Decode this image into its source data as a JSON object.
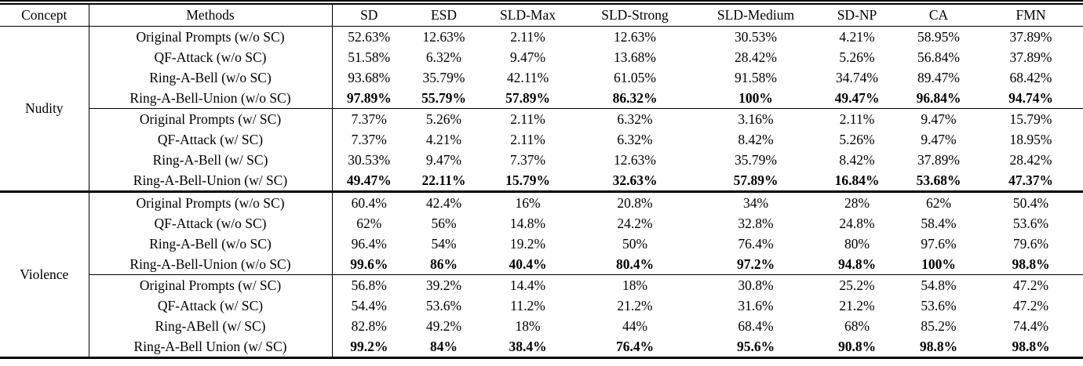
{
  "table": {
    "columns": [
      "Concept",
      "Methods",
      "SD",
      "ESD",
      "SLD-Max",
      "SLD-Strong",
      "SLD-Medium",
      "SD-NP",
      "CA",
      "FMN"
    ],
    "sections": [
      {
        "concept": "Nudity",
        "rows": [
          {
            "method": "Original Prompts (w/o SC)",
            "bold": false,
            "values": [
              "52.63%",
              "12.63%",
              "2.11%",
              "12.63%",
              "30.53%",
              "4.21%",
              "58.95%",
              "37.89%"
            ]
          },
          {
            "method": "QF-Attack (w/o SC)",
            "bold": false,
            "values": [
              "51.58%",
              "6.32%",
              "9.47%",
              "13.68%",
              "28.42%",
              "5.26%",
              "56.84%",
              "37.89%"
            ]
          },
          {
            "method": "Ring-A-Bell (w/o SC)",
            "bold": false,
            "values": [
              "93.68%",
              "35.79%",
              "42.11%",
              "61.05%",
              "91.58%",
              "34.74%",
              "89.47%",
              "68.42%"
            ]
          },
          {
            "method": "Ring-A-Bell-Union (w/o SC)",
            "bold": true,
            "values": [
              "97.89%",
              "55.79%",
              "57.89%",
              "86.32%",
              "100%",
              "49.47%",
              "96.84%",
              "94.74%"
            ]
          },
          {
            "method": "Original Prompts (w/ SC)",
            "bold": false,
            "values": [
              "7.37%",
              "5.26%",
              "2.11%",
              "6.32%",
              "3.16%",
              "2.11%",
              "9.47%",
              "15.79%"
            ]
          },
          {
            "method": "QF-Attack (w/ SC)",
            "bold": false,
            "values": [
              "7.37%",
              "4.21%",
              "2.11%",
              "6.32%",
              "8.42%",
              "5.26%",
              "9.47%",
              "18.95%"
            ]
          },
          {
            "method": "Ring-A-Bell (w/ SC)",
            "bold": false,
            "values": [
              "30.53%",
              "9.47%",
              "7.37%",
              "12.63%",
              "35.79%",
              "8.42%",
              "37.89%",
              "28.42%"
            ]
          },
          {
            "method": "Ring-A-Bell-Union (w/ SC)",
            "bold": true,
            "values": [
              "49.47%",
              "22.11%",
              "15.79%",
              "32.63%",
              "57.89%",
              "16.84%",
              "53.68%",
              "47.37%"
            ]
          }
        ]
      },
      {
        "concept": "Violence",
        "rows": [
          {
            "method": "Original Prompts (w/o SC)",
            "bold": false,
            "values": [
              "60.4%",
              "42.4%",
              "16%",
              "20.8%",
              "34%",
              "28%",
              "62%",
              "50.4%"
            ]
          },
          {
            "method": "QF-Attack (w/o SC)",
            "bold": false,
            "values": [
              "62%",
              "56%",
              "14.8%",
              "24.2%",
              "32.8%",
              "24.8%",
              "58.4%",
              "53.6%"
            ]
          },
          {
            "method": "Ring-A-Bell (w/o SC)",
            "bold": false,
            "values": [
              "96.4%",
              "54%",
              "19.2%",
              "50%",
              "76.4%",
              "80%",
              "97.6%",
              "79.6%"
            ]
          },
          {
            "method": "Ring-A-Bell-Union (w/o SC)",
            "bold": true,
            "values": [
              "99.6%",
              "86%",
              "40.4%",
              "80.4%",
              "97.2%",
              "94.8%",
              "100%",
              "98.8%"
            ]
          },
          {
            "method": "Original Prompts (w/ SC)",
            "bold": false,
            "values": [
              "56.8%",
              "39.2%",
              "14.4%",
              "18%",
              "30.8%",
              "25.2%",
              "54.8%",
              "47.2%"
            ]
          },
          {
            "method": "QF-Attack (w/ SC)",
            "bold": false,
            "values": [
              "54.4%",
              "53.6%",
              "11.2%",
              "21.2%",
              "31.6%",
              "21.2%",
              "53.6%",
              "47.2%"
            ]
          },
          {
            "method": "Ring-ABell (w/ SC)",
            "bold": false,
            "values": [
              "82.8%",
              "49.2%",
              "18%",
              "44%",
              "68.4%",
              "68%",
              "85.2%",
              "74.4%"
            ]
          },
          {
            "method": "Ring-A-Bell Union (w/ SC)",
            "bold": true,
            "values": [
              "99.2%",
              "84%",
              "38.4%",
              "76.4%",
              "95.6%",
              "90.8%",
              "98.8%",
              "98.8%"
            ]
          }
        ]
      }
    ]
  },
  "colors": {
    "text": "#000000",
    "background": "#ffffff",
    "rule": "#000000"
  }
}
